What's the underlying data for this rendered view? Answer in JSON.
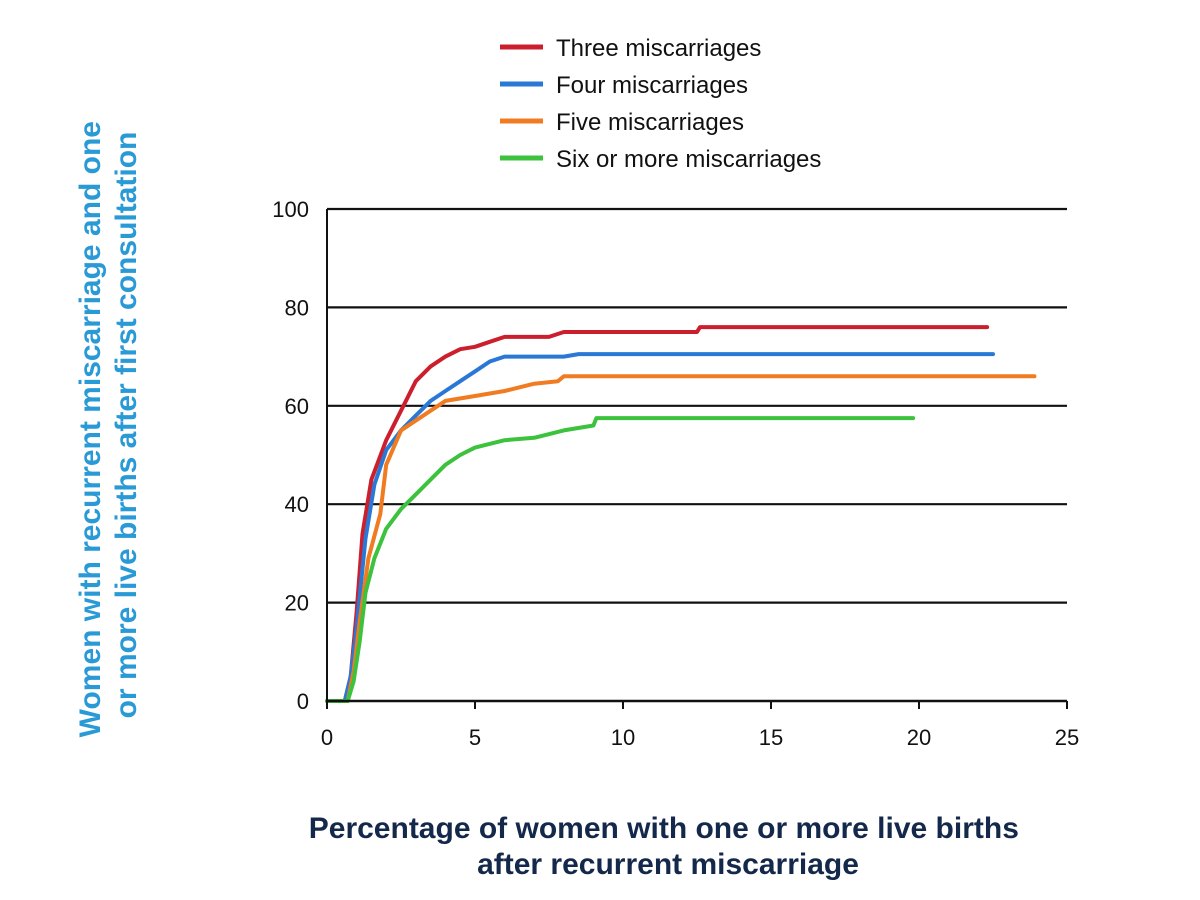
{
  "colors": {
    "ylabel": "#2a9ad6",
    "xlabel": "#14284b",
    "axis": "#111111",
    "grid": "#111111"
  },
  "chart_data": {
    "type": "line",
    "title": "",
    "ylabel": [
      "Women with recurrent miscarriage and one",
      "or more live births after first consultation"
    ],
    "xlabel": [
      "Percentage of women with one or more live births",
      "after recurrent miscarriage"
    ],
    "xlim": [
      0,
      25
    ],
    "ylim": [
      0,
      100
    ],
    "xticks": [
      0,
      5,
      10,
      15,
      20,
      25
    ],
    "yticks": [
      0,
      20,
      40,
      60,
      80,
      100
    ],
    "grid": "horizontal",
    "legend_position": "top",
    "series": [
      {
        "name": "Three miscarriages",
        "color": "#cc1f2d",
        "points": [
          [
            0,
            0
          ],
          [
            0.6,
            0
          ],
          [
            0.8,
            5
          ],
          [
            1.0,
            18
          ],
          [
            1.2,
            34
          ],
          [
            1.5,
            45
          ],
          [
            2.0,
            53
          ],
          [
            2.5,
            59
          ],
          [
            3.0,
            65
          ],
          [
            3.5,
            68
          ],
          [
            4.0,
            70
          ],
          [
            4.5,
            71.5
          ],
          [
            5.0,
            72
          ],
          [
            5.5,
            73
          ],
          [
            6.0,
            74
          ],
          [
            7.5,
            74
          ],
          [
            8.0,
            75
          ],
          [
            12.5,
            75
          ],
          [
            12.6,
            76
          ],
          [
            22.3,
            76
          ]
        ]
      },
      {
        "name": "Four miscarriages",
        "color": "#2a78d6",
        "points": [
          [
            0,
            0
          ],
          [
            0.6,
            0
          ],
          [
            0.8,
            5
          ],
          [
            1.0,
            15
          ],
          [
            1.3,
            33
          ],
          [
            1.6,
            44
          ],
          [
            2.0,
            51
          ],
          [
            2.5,
            55
          ],
          [
            3.0,
            58
          ],
          [
            3.5,
            61
          ],
          [
            4.0,
            63
          ],
          [
            4.5,
            65
          ],
          [
            5.0,
            67
          ],
          [
            5.5,
            69
          ],
          [
            6.0,
            70
          ],
          [
            8.0,
            70
          ],
          [
            8.5,
            70.5
          ],
          [
            22.5,
            70.5
          ]
        ]
      },
      {
        "name": "Five miscarriages",
        "color": "#f07b21",
        "points": [
          [
            0,
            0
          ],
          [
            0.7,
            0
          ],
          [
            0.9,
            6
          ],
          [
            1.1,
            16
          ],
          [
            1.4,
            29
          ],
          [
            1.8,
            38
          ],
          [
            2.0,
            48
          ],
          [
            2.5,
            55
          ],
          [
            3.0,
            57
          ],
          [
            3.5,
            59
          ],
          [
            4.0,
            61
          ],
          [
            5.0,
            62
          ],
          [
            6.0,
            63
          ],
          [
            7.0,
            64.5
          ],
          [
            7.8,
            65
          ],
          [
            8.0,
            66
          ],
          [
            23.9,
            66
          ]
        ]
      },
      {
        "name": "Six or more miscarriages",
        "color": "#3cc23c",
        "points": [
          [
            0,
            0
          ],
          [
            0.7,
            0
          ],
          [
            0.9,
            4
          ],
          [
            1.1,
            12
          ],
          [
            1.3,
            22
          ],
          [
            1.6,
            29
          ],
          [
            2.0,
            35
          ],
          [
            2.5,
            39
          ],
          [
            3.0,
            42
          ],
          [
            3.5,
            45
          ],
          [
            4.0,
            48
          ],
          [
            4.5,
            50
          ],
          [
            5.0,
            51.5
          ],
          [
            6.0,
            53
          ],
          [
            7.0,
            53.5
          ],
          [
            8.0,
            55
          ],
          [
            9.0,
            56
          ],
          [
            9.1,
            57.5
          ],
          [
            19.8,
            57.5
          ]
        ]
      }
    ]
  }
}
